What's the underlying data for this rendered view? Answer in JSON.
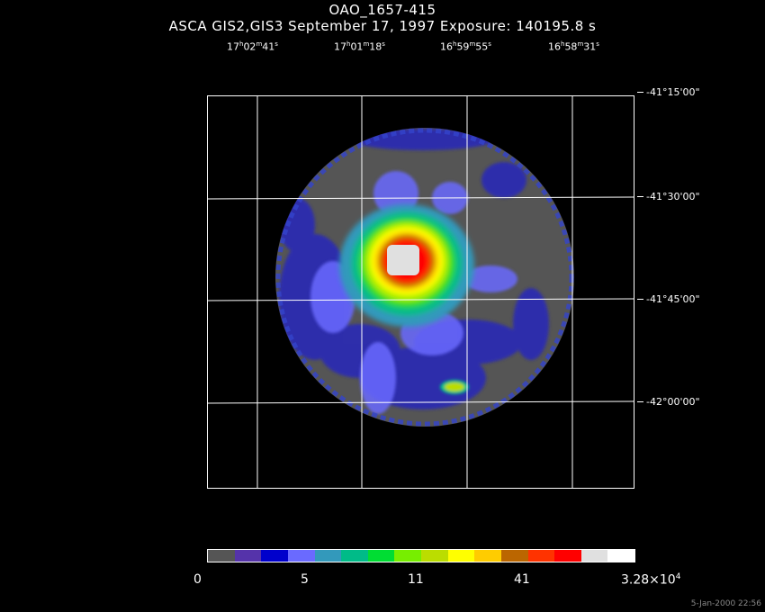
{
  "title": "OAO_1657-415",
  "subtitle": "ASCA GIS2,GIS3 September 17, 1997 Exposure: 140195.8 s",
  "ra_labels": [
    {
      "h": "17",
      "hu": "h",
      "m": "02",
      "mu": "m",
      "s": "41",
      "su": "s"
    },
    {
      "h": "17",
      "hu": "h",
      "m": "01",
      "mu": "m",
      "s": "18",
      "su": "s"
    },
    {
      "h": "16",
      "hu": "h",
      "m": "59",
      "mu": "m",
      "s": "55",
      "su": "s"
    },
    {
      "h": "16",
      "hu": "h",
      "m": "58",
      "mu": "m",
      "s": "31",
      "su": "s"
    }
  ],
  "dec_labels": [
    "-41°15'00\"",
    "-41°30'00\"",
    "-41°45'00\"",
    "-42°00'00\""
  ],
  "colorbar": {
    "colors": [
      "#555555",
      "#5533aa",
      "#0000cc",
      "#6a6aff",
      "#3399bb",
      "#00bb88",
      "#00dd33",
      "#77ee00",
      "#bbdd00",
      "#ffff00",
      "#ffcc00",
      "#bb6600",
      "#ff3300",
      "#ff0000",
      "#e0e0e0",
      "#ffffff"
    ],
    "labels": [
      "0",
      "5",
      "11",
      "41"
    ],
    "max_mantissa": "3.28×10",
    "max_exponent": "4"
  },
  "datestamp": "5-Jan-2000 22:56"
}
